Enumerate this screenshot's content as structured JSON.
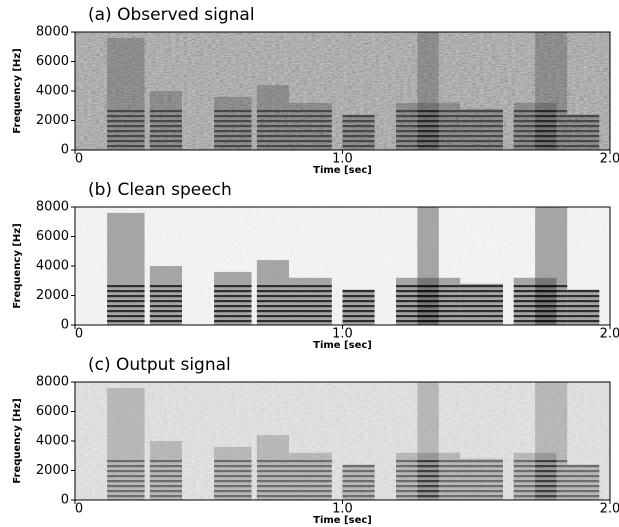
{
  "chart_data": [
    {
      "type": "spectrogram",
      "title": "(a) Observed signal",
      "xlabel": "Time [sec]",
      "ylabel": "Frequency [Hz]",
      "xlim": [
        0,
        2
      ],
      "xticks": [
        0,
        {
          "value": 1,
          "label": "1.0"
        },
        {
          "value": 2,
          "label": "2.0"
        }
      ],
      "ylim": [
        0,
        8000
      ],
      "yticks": [
        0,
        2000,
        4000,
        6000,
        8000
      ]
    },
    {
      "type": "spectrogram",
      "title": "(b) Clean speech",
      "xlabel": "Time [sec]",
      "ylabel": "Frequency [Hz]",
      "xlim": [
        0,
        2
      ],
      "xticks": [
        0,
        {
          "value": 1,
          "label": "1.0"
        },
        {
          "value": 2,
          "label": "2.0"
        }
      ],
      "ylim": [
        0,
        8000
      ],
      "yticks": [
        0,
        2000,
        4000,
        6000,
        8000
      ]
    },
    {
      "type": "spectrogram",
      "title": "(c) Output signal",
      "xlabel": "Time [sec]",
      "ylabel": "Frequency [Hz]",
      "xlim": [
        0,
        2
      ],
      "xticks": [
        0,
        {
          "value": 1,
          "label": "1.0"
        },
        {
          "value": 2,
          "label": "2.0"
        }
      ],
      "ylim": [
        0,
        8000
      ],
      "yticks": [
        0,
        2000,
        4000,
        6000,
        8000
      ]
    }
  ]
}
